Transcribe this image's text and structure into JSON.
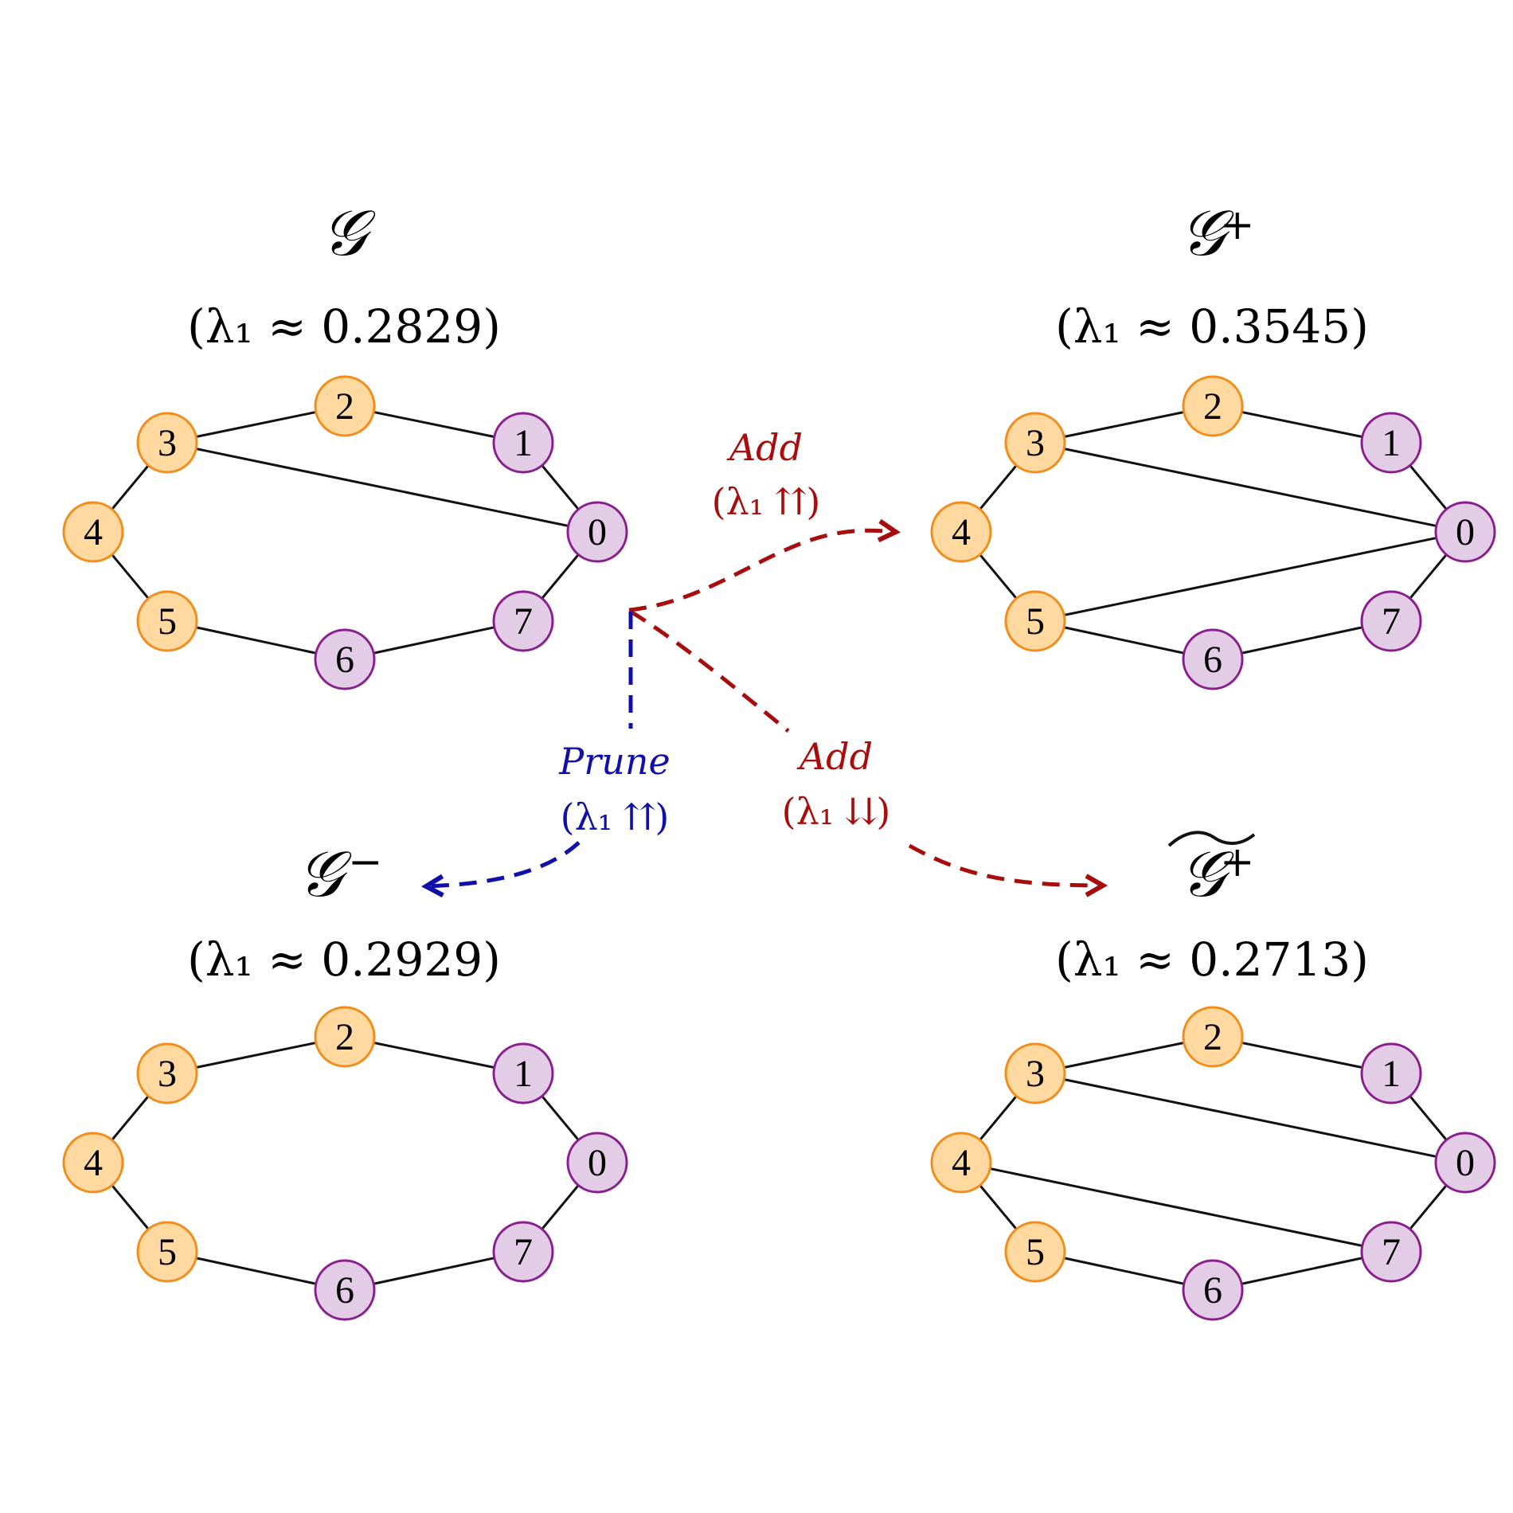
{
  "colors": {
    "orange_fill": "#FFD9A0",
    "orange_stroke": "#F28C1A",
    "purple_fill": "#E3CDE6",
    "purple_stroke": "#8B1E8E",
    "add_color": "#A80D0D",
    "prune_color": "#1010A8",
    "edge_color": "#111111"
  },
  "graphs": [
    {
      "id": "g",
      "title": "𝒢",
      "superscript": "",
      "tilde": false,
      "eigen_label": "(λ₁ ≈ 0.2829)",
      "lambda1": 0.2829,
      "nodes": [
        {
          "id": "0",
          "group": "purple"
        },
        {
          "id": "1",
          "group": "purple"
        },
        {
          "id": "2",
          "group": "orange"
        },
        {
          "id": "3",
          "group": "orange"
        },
        {
          "id": "4",
          "group": "orange"
        },
        {
          "id": "5",
          "group": "orange"
        },
        {
          "id": "6",
          "group": "purple"
        },
        {
          "id": "7",
          "group": "purple"
        }
      ],
      "edges": [
        [
          "3",
          "2"
        ],
        [
          "2",
          "1"
        ],
        [
          "1",
          "0"
        ],
        [
          "3",
          "0"
        ],
        [
          "3",
          "4"
        ],
        [
          "4",
          "5"
        ],
        [
          "5",
          "6"
        ],
        [
          "6",
          "7"
        ],
        [
          "7",
          "0"
        ]
      ]
    },
    {
      "id": "g-plus",
      "title": "𝒢",
      "superscript": "+",
      "tilde": false,
      "eigen_label": "(λ₁ ≈ 0.3545)",
      "lambda1": 0.3545,
      "nodes": [
        {
          "id": "0",
          "group": "purple"
        },
        {
          "id": "1",
          "group": "purple"
        },
        {
          "id": "2",
          "group": "orange"
        },
        {
          "id": "3",
          "group": "orange"
        },
        {
          "id": "4",
          "group": "orange"
        },
        {
          "id": "5",
          "group": "orange"
        },
        {
          "id": "6",
          "group": "purple"
        },
        {
          "id": "7",
          "group": "purple"
        }
      ],
      "edges": [
        [
          "3",
          "2"
        ],
        [
          "2",
          "1"
        ],
        [
          "1",
          "0"
        ],
        [
          "3",
          "0"
        ],
        [
          "5",
          "0"
        ],
        [
          "3",
          "4"
        ],
        [
          "4",
          "5"
        ],
        [
          "5",
          "6"
        ],
        [
          "6",
          "7"
        ],
        [
          "7",
          "0"
        ]
      ]
    },
    {
      "id": "g-minus",
      "title": "𝒢",
      "superscript": "−",
      "tilde": false,
      "eigen_label": "(λ₁ ≈ 0.2929)",
      "lambda1": 0.2929,
      "nodes": [
        {
          "id": "0",
          "group": "purple"
        },
        {
          "id": "1",
          "group": "purple"
        },
        {
          "id": "2",
          "group": "orange"
        },
        {
          "id": "3",
          "group": "orange"
        },
        {
          "id": "4",
          "group": "orange"
        },
        {
          "id": "5",
          "group": "orange"
        },
        {
          "id": "6",
          "group": "purple"
        },
        {
          "id": "7",
          "group": "purple"
        }
      ],
      "edges": [
        [
          "3",
          "2"
        ],
        [
          "2",
          "1"
        ],
        [
          "1",
          "0"
        ],
        [
          "3",
          "4"
        ],
        [
          "4",
          "5"
        ],
        [
          "5",
          "6"
        ],
        [
          "6",
          "7"
        ],
        [
          "7",
          "0"
        ]
      ]
    },
    {
      "id": "g-tilde-plus",
      "title": "𝒢",
      "superscript": "+",
      "tilde": true,
      "eigen_label": "(λ₁ ≈ 0.2713)",
      "lambda1": 0.2713,
      "nodes": [
        {
          "id": "0",
          "group": "purple"
        },
        {
          "id": "1",
          "group": "purple"
        },
        {
          "id": "2",
          "group": "orange"
        },
        {
          "id": "3",
          "group": "orange"
        },
        {
          "id": "4",
          "group": "orange"
        },
        {
          "id": "5",
          "group": "orange"
        },
        {
          "id": "6",
          "group": "purple"
        },
        {
          "id": "7",
          "group": "purple"
        }
      ],
      "edges": [
        [
          "3",
          "2"
        ],
        [
          "2",
          "1"
        ],
        [
          "1",
          "0"
        ],
        [
          "3",
          "0"
        ],
        [
          "4",
          "7"
        ],
        [
          "3",
          "4"
        ],
        [
          "4",
          "5"
        ],
        [
          "5",
          "6"
        ],
        [
          "6",
          "7"
        ],
        [
          "7",
          "0"
        ]
      ]
    }
  ],
  "operations": [
    {
      "id": "add-up",
      "name": "Add",
      "effect": "(λ₁ ⇈)",
      "kind": "add",
      "to": "g-plus"
    },
    {
      "id": "add-down",
      "name": "Add",
      "effect": "(λ₁ ⇊)",
      "kind": "add",
      "to": "g-tilde-plus"
    },
    {
      "id": "prune-up",
      "name": "Prune",
      "effect": "(λ₁ ⇈)",
      "kind": "prune",
      "to": "g-minus"
    }
  ]
}
